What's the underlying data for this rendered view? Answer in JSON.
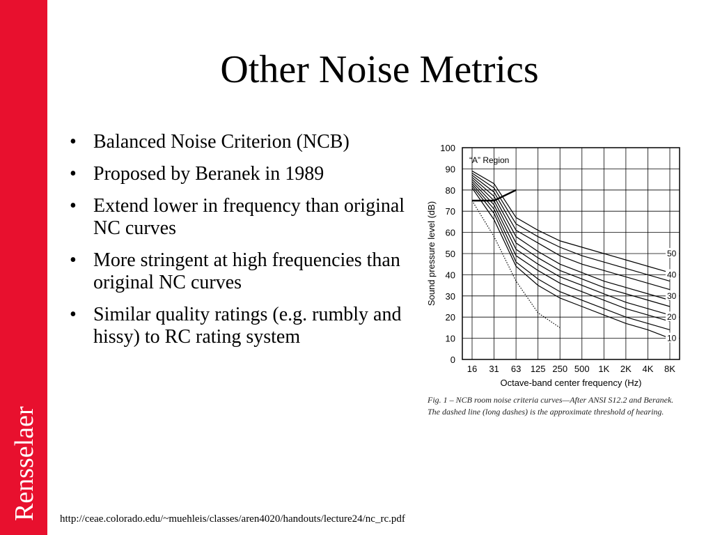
{
  "slide": {
    "title": "Other Noise Metrics",
    "bullets": [
      "Balanced Noise Criterion (NCB)",
      "Proposed by Beranek in 1989",
      "Extend lower in frequency than original NC curves",
      "More stringent at high frequencies than original NC curves",
      "Similar quality ratings (e.g. rumbly and hissy) to RC rating system"
    ],
    "brand": "Rensselaer",
    "footer_url": "http://ceae.colorado.edu/~muehleis/classes/aren4020/handouts/lecture24/nc_rc.pdf",
    "caption": "Fig. 1 – NCB room noise criteria curves—After ANSI S12.2 and Beranek. The dashed line (long dashes) is the approximate threshold of hearing.",
    "colors": {
      "sidebar": "#e8102e",
      "text": "#000000"
    }
  },
  "chart_data": {
    "type": "line",
    "title": "",
    "xlabel": "Octave-band center frequency (Hz)",
    "ylabel": "Sound pressure level (dB)",
    "categories": [
      "16",
      "31",
      "63",
      "125",
      "250",
      "500",
      "1K",
      "2K",
      "4K",
      "8K"
    ],
    "ylim": [
      0,
      100
    ],
    "yticks": [
      0,
      10,
      20,
      30,
      40,
      50,
      60,
      70,
      80,
      90,
      100
    ],
    "grid": true,
    "region_label": "“A” Region",
    "curve_labels": [
      "50",
      "40",
      "30",
      "20",
      "10"
    ],
    "series": [
      {
        "values": [
          89,
          83,
          67,
          61,
          56,
          53,
          50,
          47,
          44,
          41
        ]
      },
      {
        "values": [
          88,
          81,
          64,
          58,
          53,
          49,
          46,
          43,
          40,
          37
        ]
      },
      {
        "values": [
          87,
          79,
          61,
          55,
          49,
          45,
          42,
          39,
          36,
          33
        ]
      },
      {
        "values": [
          86,
          77,
          58,
          51,
          45,
          41,
          37,
          34,
          31,
          28
        ]
      },
      {
        "values": [
          85,
          75,
          55,
          48,
          42,
          38,
          34,
          31,
          28,
          25
        ]
      },
      {
        "values": [
          84,
          73,
          52,
          45,
          39,
          35,
          31,
          27,
          24,
          21
        ]
      },
      {
        "values": [
          83,
          71,
          49,
          42,
          36,
          32,
          28,
          24,
          21,
          18
        ]
      },
      {
        "values": [
          82,
          69,
          46,
          38,
          32,
          28,
          24,
          20,
          17,
          14
        ]
      },
      {
        "values": [
          81,
          66,
          44,
          35,
          29,
          25,
          21,
          17,
          14,
          10
        ]
      }
    ],
    "threshold": {
      "values": [
        75,
        58,
        37,
        22,
        15
      ]
    },
    "a_region_boundary": {
      "values": [
        75,
        75,
        80
      ]
    }
  }
}
